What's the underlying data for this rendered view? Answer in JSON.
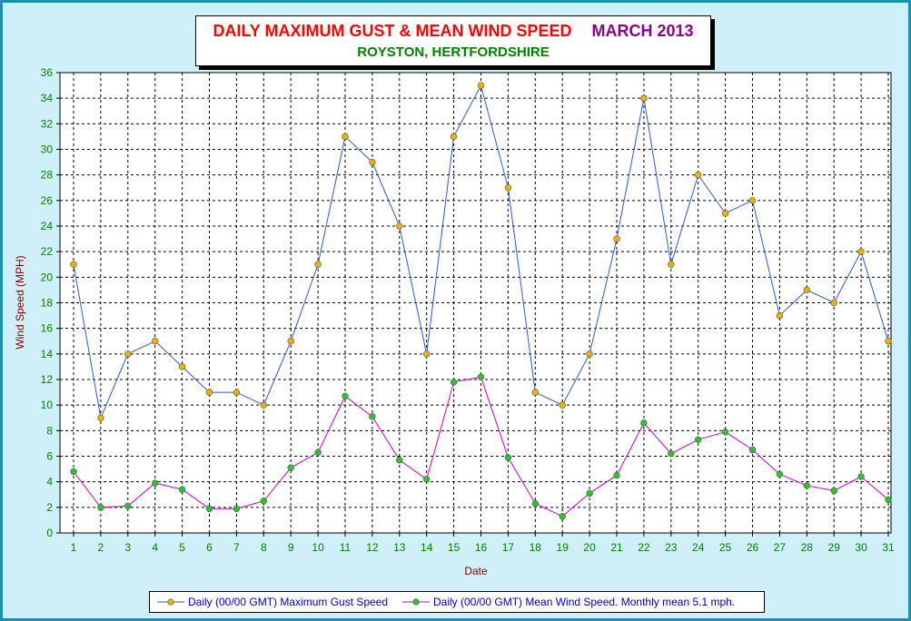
{
  "header": {
    "title": "DAILY MAXIMUM GUST & MEAN WIND SPEED",
    "month": "MARCH 2013",
    "subtitle": "ROYSTON, HERTFORDSHIRE"
  },
  "colors": {
    "gust_line": "#2a5cc8",
    "gust_marker": "#f0b000",
    "mean_line": "#d000c8",
    "mean_marker": "#2cc42c",
    "axis_tick_text": "#008000",
    "axis_label_text": "#800000"
  },
  "chart_data": {
    "type": "line",
    "title": "DAILY MAXIMUM GUST & MEAN WIND SPEED   MARCH 2013",
    "subtitle": "ROYSTON, HERTFORDSHIRE",
    "xlabel": "Date",
    "ylabel": "Wind Speed (MPH)",
    "ylim": [
      0,
      36
    ],
    "ytick_step": 2,
    "grid": true,
    "legend_position": "bottom",
    "x": [
      "1",
      "2",
      "3",
      "4",
      "5",
      "6",
      "7",
      "8",
      "9",
      "10",
      "11",
      "12",
      "13",
      "14",
      "15",
      "16",
      "17",
      "18",
      "19",
      "20",
      "21",
      "22",
      "23",
      "24",
      "25",
      "26",
      "27",
      "28",
      "29",
      "30",
      "31"
    ],
    "series": [
      {
        "name": "Daily (00/00 GMT) Maximum Gust Speed",
        "values": [
          21,
          9,
          14,
          15,
          13,
          11,
          11,
          10,
          15,
          21,
          31,
          29,
          24,
          14,
          31,
          35,
          27,
          11,
          10,
          14,
          23,
          34,
          21,
          28,
          25,
          26,
          17,
          19,
          18,
          22,
          15
        ]
      },
      {
        "name": "Daily (00/00 GMT) Mean Wind Speed. Monthly mean 5.1 mph.",
        "values": [
          4.8,
          2.0,
          2.1,
          3.9,
          3.4,
          1.9,
          1.9,
          2.5,
          5.1,
          6.3,
          10.7,
          9.1,
          5.7,
          4.2,
          11.8,
          12.2,
          5.9,
          2.3,
          1.3,
          3.1,
          4.5,
          8.6,
          6.2,
          7.3,
          7.9,
          6.5,
          4.6,
          3.7,
          3.3,
          4.4,
          2.6
        ]
      }
    ]
  }
}
